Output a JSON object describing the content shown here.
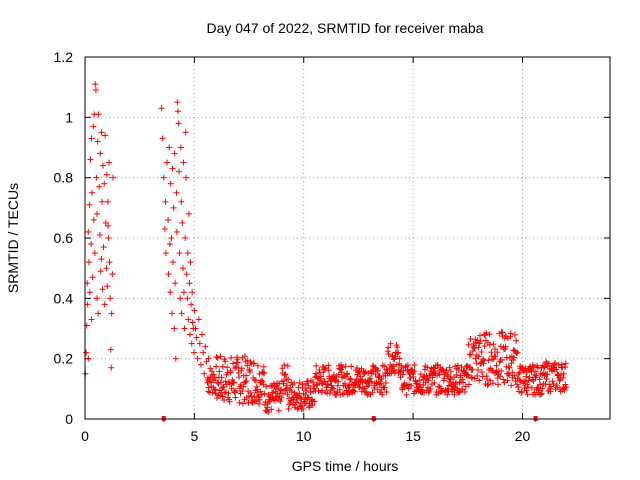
{
  "chart_data": {
    "type": "scatter",
    "title": "Day 047 of 2022, SRMTID for receiver maba",
    "xlabel": "GPS time / hours",
    "ylabel": "SRMTID / TECUs",
    "xlim": [
      0,
      24
    ],
    "ylim": [
      0,
      1.2
    ],
    "xticks": [
      0,
      5,
      10,
      15,
      20
    ],
    "xtick_labels": [
      "0",
      "5",
      "10",
      "15",
      "20"
    ],
    "yticks": [
      0,
      0.2,
      0.4,
      0.6,
      0.8,
      1.0,
      1.2
    ],
    "ytick_labels": [
      "0",
      "0.2",
      "0.4",
      "0.6",
      "0.8",
      "1",
      "1.2"
    ],
    "grid": true,
    "legend": "none",
    "marker": "plus",
    "series": [
      {
        "name": "SRMTID",
        "color": "#ff0000",
        "points": [
          [
            0.02,
            0.15
          ],
          [
            0.05,
            0.22
          ],
          [
            0.08,
            0.31
          ],
          [
            0.1,
            0.45
          ],
          [
            0.12,
            0.38
          ],
          [
            0.15,
            0.62
          ],
          [
            0.18,
            0.52
          ],
          [
            0.2,
            0.71
          ],
          [
            0.22,
            0.42
          ],
          [
            0.25,
            0.86
          ],
          [
            0.28,
            0.58
          ],
          [
            0.3,
            0.93
          ],
          [
            0.32,
            0.75
          ],
          [
            0.35,
            0.47
          ],
          [
            0.38,
            0.97
          ],
          [
            0.4,
            0.66
          ],
          [
            0.42,
            1.01
          ],
          [
            0.45,
            0.55
          ],
          [
            0.47,
            1.11
          ],
          [
            0.5,
            1.09
          ],
          [
            0.52,
            0.8
          ],
          [
            0.55,
            0.68
          ],
          [
            0.58,
            0.92
          ],
          [
            0.6,
            0.35
          ],
          [
            0.62,
            1.01
          ],
          [
            0.65,
            0.77
          ],
          [
            0.68,
            0.61
          ],
          [
            0.7,
            0.88
          ],
          [
            0.72,
            0.49
          ],
          [
            0.75,
            0.95
          ],
          [
            0.78,
            0.72
          ],
          [
            0.8,
            0.43
          ],
          [
            0.82,
            0.84
          ],
          [
            0.85,
            0.57
          ],
          [
            0.88,
            0.78
          ],
          [
            0.9,
            0.38
          ],
          [
            0.92,
            0.94
          ],
          [
            0.95,
            0.65
          ],
          [
            0.98,
            0.5
          ],
          [
            1.0,
            0.81
          ],
          [
            1.02,
            0.44
          ],
          [
            1.05,
            0.72
          ],
          [
            1.08,
            0.6
          ],
          [
            1.1,
            0.85
          ],
          [
            1.12,
            0.52
          ],
          [
            1.15,
            0.4
          ],
          [
            1.18,
            0.23
          ],
          [
            1.2,
            0.17
          ],
          [
            1.22,
            0.35
          ],
          [
            1.25,
            0.48
          ],
          [
            1.28,
            0.8
          ],
          [
            0.15,
            0.2
          ],
          [
            0.3,
            0.33
          ],
          [
            0.55,
            0.4
          ],
          [
            0.75,
            0.53
          ],
          [
            1.05,
            0.64
          ],
          [
            3.5,
            1.03
          ],
          [
            3.55,
            0.93
          ],
          [
            3.6,
            0.8
          ],
          [
            3.65,
            0.63
          ],
          [
            3.68,
            0.72
          ],
          [
            3.7,
            0.55
          ],
          [
            3.75,
            0.85
          ],
          [
            3.8,
            0.66
          ],
          [
            3.82,
            0.48
          ],
          [
            3.85,
            0.9
          ],
          [
            3.88,
            0.58
          ],
          [
            3.9,
            0.42
          ],
          [
            3.92,
            0.78
          ],
          [
            3.95,
            0.6
          ],
          [
            3.98,
            0.35
          ],
          [
            4.0,
            0.83
          ],
          [
            4.02,
            0.52
          ],
          [
            4.05,
            0.7
          ],
          [
            4.08,
            0.3
          ],
          [
            4.1,
            0.88
          ],
          [
            4.12,
            0.45
          ],
          [
            4.15,
            0.2
          ],
          [
            4.18,
            0.75
          ],
          [
            4.2,
            0.62
          ],
          [
            4.22,
            1.05
          ],
          [
            4.25,
            1.02
          ],
          [
            4.28,
            0.98
          ],
          [
            4.3,
            0.82
          ],
          [
            4.32,
            0.55
          ],
          [
            4.35,
            0.4
          ],
          [
            4.38,
            0.9
          ],
          [
            4.4,
            0.72
          ],
          [
            4.42,
            0.35
          ],
          [
            4.45,
            0.65
          ],
          [
            4.48,
            0.5
          ],
          [
            4.5,
            0.85
          ],
          [
            4.52,
            0.42
          ],
          [
            4.55,
            0.3
          ],
          [
            4.58,
            0.6
          ],
          [
            4.6,
            0.95
          ],
          [
            4.62,
            0.8
          ],
          [
            4.65,
            0.48
          ],
          [
            4.68,
            0.4
          ],
          [
            4.7,
            0.55
          ],
          [
            4.72,
            0.33
          ],
          [
            4.75,
            0.68
          ],
          [
            4.78,
            0.45
          ],
          [
            4.8,
            0.28
          ],
          [
            4.82,
            0.52
          ],
          [
            4.85,
            0.38
          ],
          [
            4.88,
            0.25
          ],
          [
            4.9,
            0.42
          ],
          [
            4.92,
            0.32
          ],
          [
            4.95,
            0.3
          ],
          [
            4.98,
            0.22
          ],
          [
            5.0,
            0.36
          ],
          [
            5.05,
            0.3
          ],
          [
            5.1,
            0.27
          ],
          [
            5.15,
            0.2
          ],
          [
            5.2,
            0.33
          ],
          [
            5.25,
            0.25
          ],
          [
            5.3,
            0.18
          ],
          [
            5.35,
            0.28
          ],
          [
            5.4,
            0.22
          ],
          [
            5.45,
            0.15
          ],
          [
            5.5,
            0.24
          ],
          [
            5.55,
            0.19
          ],
          [
            5.6,
            0.12
          ],
          [
            5.65,
            0.2
          ],
          [
            13.2,
            0.0
          ],
          [
            3.6,
            0.0
          ],
          [
            20.6,
            0.0
          ]
        ]
      }
    ],
    "baseline_markers": [
      3.6,
      13.2,
      20.6
    ]
  }
}
